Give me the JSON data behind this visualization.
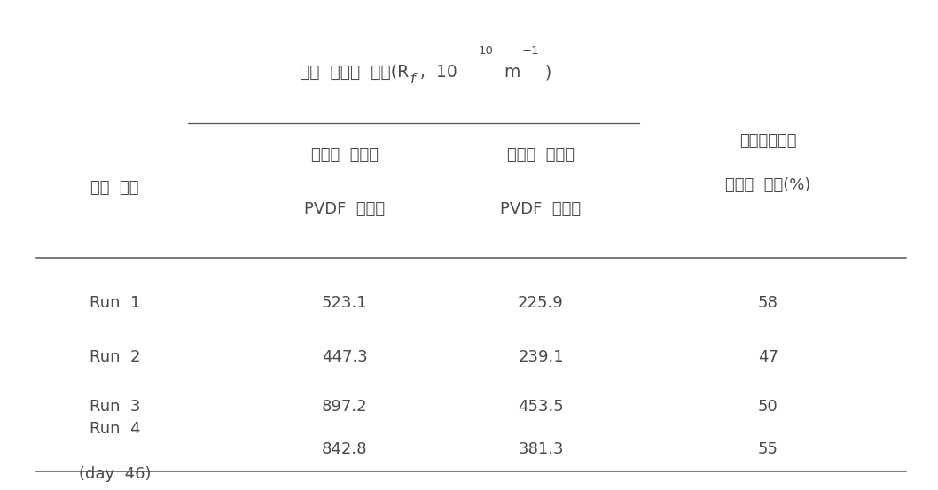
{
  "col_header_left": "운전  조건",
  "title_korean": "전체  막오염  저항(R",
  "title_sub": "f",
  "title_end1": ",  10",
  "title_sup": "10",
  "title_end2": "m",
  "title_sup2": "−1",
  "title_end3": ")",
  "col_header_mid1_line1": "상업용  친수성",
  "col_header_mid1_line2": "PVDF  분리막",
  "col_header_mid2_line1": "친수화  개질된",
  "col_header_mid2_line2": "PVDF  분리막",
  "col_header_right_line1": "바이오파울링",
  "col_header_right_line2": "오염도  저감(%)",
  "rows": [
    {
      "label": "Run  1",
      "label2": null,
      "val1": "523.1",
      "val2": "225.9",
      "val3": "58"
    },
    {
      "label": "Run  2",
      "label2": null,
      "val1": "447.3",
      "val2": "239.1",
      "val3": "47"
    },
    {
      "label": "Run  3",
      "label2": null,
      "val1": "897.2",
      "val2": "453.5",
      "val3": "50"
    },
    {
      "label": "Run  4",
      "label2": "(day  46)",
      "val1": "842.8",
      "val2": "381.3",
      "val3": "55"
    }
  ],
  "bg_color": "#ffffff",
  "text_color": "#4a4a4a",
  "line_color": "#555555",
  "font_size": 13.0,
  "font_size_title": 13.5,
  "figsize": [
    10.38,
    5.31
  ]
}
